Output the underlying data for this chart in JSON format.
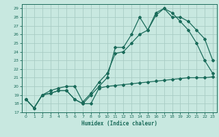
{
  "title": "",
  "xlabel": "Humidex (Indice chaleur)",
  "ylabel": "",
  "xlim": [
    -0.5,
    23.5
  ],
  "ylim": [
    17,
    29.5
  ],
  "yticks": [
    17,
    18,
    19,
    20,
    21,
    22,
    23,
    24,
    25,
    26,
    27,
    28,
    29
  ],
  "xticks": [
    0,
    1,
    2,
    3,
    4,
    5,
    6,
    7,
    8,
    9,
    10,
    11,
    12,
    13,
    14,
    15,
    16,
    17,
    18,
    19,
    20,
    21,
    22,
    23
  ],
  "bg_color": "#c8e8e0",
  "grid_color": "#a8ccc4",
  "line_color": "#1a6b5a",
  "line1_y": [
    18.5,
    17.5,
    19.0,
    19.2,
    19.5,
    19.5,
    18.5,
    18.0,
    18.0,
    19.8,
    20.0,
    20.1,
    20.2,
    20.3,
    20.4,
    20.5,
    20.6,
    20.7,
    20.8,
    20.9,
    21.0,
    21.0,
    21.0,
    21.1
  ],
  "line2_y": [
    18.5,
    17.5,
    19.0,
    19.2,
    19.5,
    19.5,
    18.5,
    18.0,
    19.0,
    20.0,
    21.0,
    24.5,
    24.5,
    26.0,
    28.0,
    26.5,
    28.5,
    29.0,
    28.5,
    27.5,
    26.5,
    25.0,
    23.0,
    21.5
  ],
  "line3_y": [
    18.5,
    17.5,
    19.0,
    19.5,
    19.8,
    20.0,
    20.0,
    18.2,
    19.2,
    20.5,
    21.5,
    23.8,
    24.0,
    25.0,
    26.0,
    26.5,
    28.2,
    29.0,
    28.0,
    28.0,
    27.5,
    26.5,
    25.5,
    23.0
  ]
}
